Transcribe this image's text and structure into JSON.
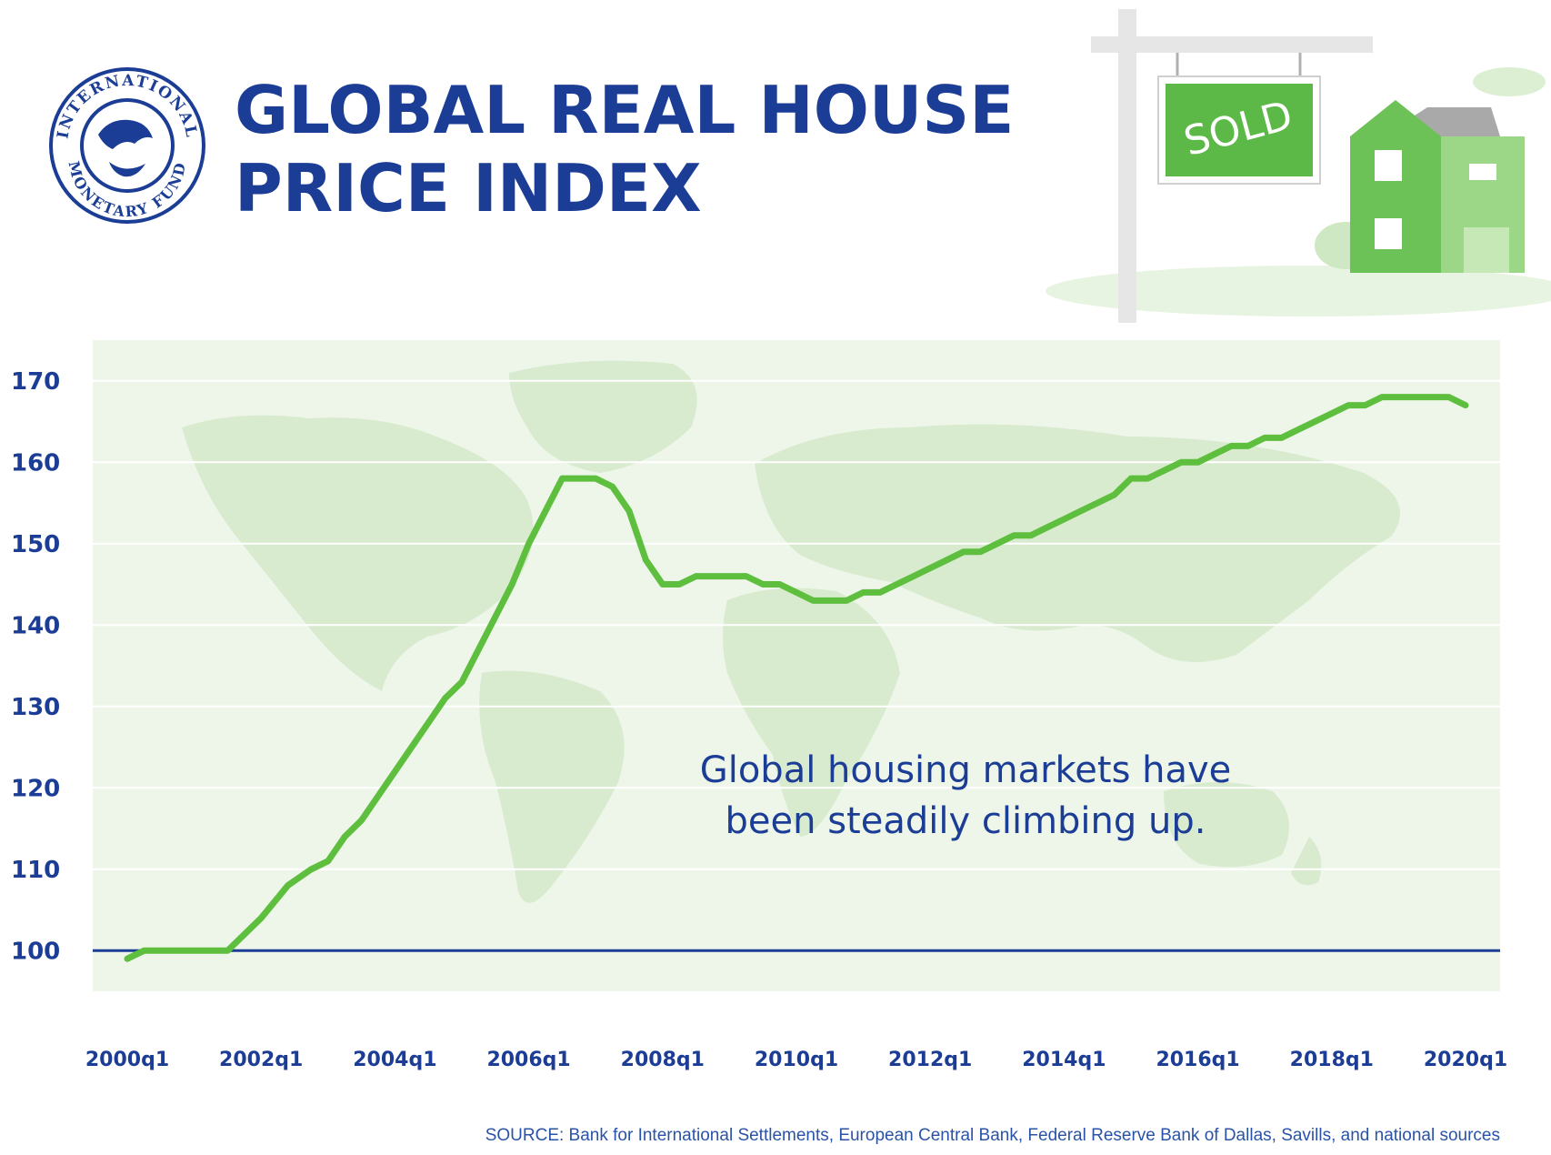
{
  "header": {
    "title_line1": "GLOBAL REAL HOUSE",
    "title_line2": "PRICE INDEX",
    "logo_text_top": "INTERNATIONAL",
    "logo_text_bottom": "MONETARY FUND",
    "sign_text": "SOLD"
  },
  "colors": {
    "title": "#1b3d95",
    "line": "#5ebf3f",
    "baseline": "#1b3d95",
    "plot_bg": "#eef6ea",
    "map": "#d8ebcf",
    "sign_green": "#5cb947",
    "house_green": "#6cc257"
  },
  "chart_data": {
    "type": "line",
    "title": "GLOBAL REAL HOUSE PRICE INDEX",
    "xlabel": "",
    "ylabel": "",
    "ylim": [
      95,
      175
    ],
    "yticks": [
      100,
      110,
      120,
      130,
      140,
      150,
      160,
      170
    ],
    "xtick_labels": [
      "2000q1",
      "2002q1",
      "2004q1",
      "2006q1",
      "2008q1",
      "2010q1",
      "2012q1",
      "2014q1",
      "2016q1",
      "2018q1",
      "2020q1"
    ],
    "xlim": [
      2000.0,
      2020.0
    ],
    "reference_line": 100,
    "annotation": [
      "Global housing markets have",
      "been steadily climbing up."
    ],
    "series": [
      {
        "x": [
          2000.0,
          2000.25,
          2000.5,
          2001.0,
          2001.5,
          2002.0,
          2002.4,
          2002.75,
          2003.0,
          2003.25,
          2003.5,
          2003.75,
          2004.0,
          2004.25,
          2004.5,
          2004.75,
          2005.0,
          2005.25,
          2005.5,
          2005.75,
          2006.0,
          2006.25,
          2006.5,
          2006.75,
          2007.0,
          2007.25,
          2007.5,
          2007.75,
          2008.0,
          2008.25,
          2008.5,
          2008.75,
          2009.0,
          2009.25,
          2009.5,
          2009.75,
          2010.0,
          2010.25,
          2010.5,
          2010.75,
          2011.0,
          2011.25,
          2011.5,
          2011.75,
          2012.0,
          2012.25,
          2012.5,
          2012.75,
          2013.0,
          2013.25,
          2013.5,
          2013.75,
          2014.0,
          2014.25,
          2014.5,
          2014.75,
          2015.0,
          2015.25,
          2015.5,
          2015.75,
          2016.0,
          2016.25,
          2016.5,
          2016.75,
          2017.0,
          2017.25,
          2017.5,
          2017.75,
          2018.0,
          2018.25,
          2018.5,
          2018.75,
          2019.0,
          2019.25,
          2019.5,
          2019.75,
          2020.0
        ],
        "y": [
          99,
          100,
          100,
          100,
          100,
          104,
          108,
          110,
          111,
          114,
          116,
          119,
          122,
          125,
          128,
          131,
          133,
          137,
          141,
          145,
          150,
          154,
          158,
          158,
          158,
          157,
          154,
          148,
          145,
          145,
          146,
          146,
          146,
          146,
          145,
          145,
          144,
          143,
          143,
          143,
          144,
          144,
          145,
          146,
          147,
          148,
          149,
          149,
          150,
          151,
          151,
          152,
          153,
          154,
          155,
          156,
          158,
          158,
          159,
          160,
          160,
          161,
          162,
          162,
          163,
          163,
          164,
          165,
          166,
          167,
          167,
          168,
          168,
          168,
          168,
          168,
          167
        ]
      }
    ]
  },
  "footer": {
    "source": "SOURCE: Bank for International Settlements, European Central Bank, Federal Reserve Bank of Dallas, Savills, and national sources"
  }
}
